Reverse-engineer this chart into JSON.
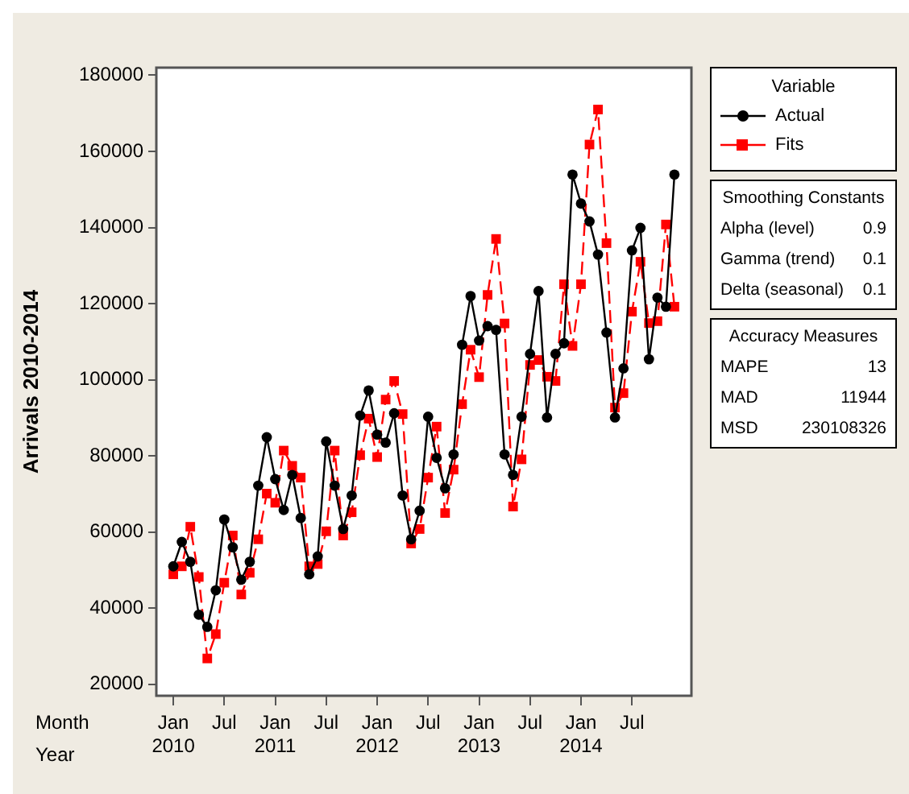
{
  "chart_data": {
    "type": "line",
    "ylabel": "Arrivals 2010-2014",
    "xlabel": "Month\nYear",
    "legend_title": "Variable",
    "legend": "right",
    "grid": false,
    "x": [
      "2010-01",
      "2010-02",
      "2010-03",
      "2010-04",
      "2010-05",
      "2010-06",
      "2010-07",
      "2010-08",
      "2010-09",
      "2010-10",
      "2010-11",
      "2010-12",
      "2011-01",
      "2011-02",
      "2011-03",
      "2011-04",
      "2011-05",
      "2011-06",
      "2011-07",
      "2011-08",
      "2011-09",
      "2011-10",
      "2011-11",
      "2011-12",
      "2012-01",
      "2012-02",
      "2012-03",
      "2012-04",
      "2012-05",
      "2012-06",
      "2012-07",
      "2012-08",
      "2012-09",
      "2012-10",
      "2012-11",
      "2012-12",
      "2013-01",
      "2013-02",
      "2013-03",
      "2013-04",
      "2013-05",
      "2013-06",
      "2013-07",
      "2013-08",
      "2013-09",
      "2013-10",
      "2013-11",
      "2013-12",
      "2014-01",
      "2014-02",
      "2014-03",
      "2014-04",
      "2014-05",
      "2014-06",
      "2014-07",
      "2014-08",
      "2014-09",
      "2014-10",
      "2014-11",
      "2014-12"
    ],
    "series": [
      {
        "name": "Actual",
        "color": "#000000",
        "marker": "circle",
        "line_style": "solid",
        "values": [
          51000,
          57400,
          52200,
          38300,
          35100,
          44700,
          63300,
          56000,
          47500,
          52200,
          72200,
          84900,
          73900,
          65800,
          75000,
          63700,
          48900,
          53600,
          83800,
          72200,
          60800,
          69600,
          90600,
          97200,
          85600,
          83500,
          91200,
          69600,
          58100,
          65600,
          90300,
          79500,
          71500,
          80400,
          109200,
          122000,
          110300,
          114100,
          113100,
          80400,
          75000,
          90300,
          106800,
          123300,
          90100,
          106800,
          109600,
          153900,
          146300,
          141600,
          132900,
          112400,
          90100,
          103000,
          134000,
          139900,
          105400,
          121600,
          119200,
          153900
        ]
      },
      {
        "name": "Fits",
        "color": "#ff0000",
        "marker": "square",
        "line_style": "dashed",
        "values": [
          48900,
          51000,
          61400,
          48200,
          26800,
          33200,
          46700,
          59100,
          43600,
          49300,
          58100,
          70100,
          67700,
          81400,
          77400,
          74300,
          51000,
          51600,
          60200,
          81400,
          59100,
          65200,
          80200,
          89800,
          79700,
          94800,
          99700,
          91000,
          57000,
          60800,
          74300,
          87700,
          65000,
          76400,
          93600,
          107900,
          100700,
          122300,
          137000,
          114800,
          66700,
          79100,
          103900,
          105200,
          100800,
          99700,
          125100,
          108900,
          125100,
          161800,
          171000,
          135900,
          92700,
          96500,
          117900,
          131000,
          114900,
          115400,
          140800,
          119200
        ]
      }
    ],
    "xlim": [
      "2009-11",
      "2015-02"
    ],
    "xticks": [
      {
        "value": "2010-01",
        "label": "Jan\n2010"
      },
      {
        "value": "2010-07",
        "label": "Jul"
      },
      {
        "value": "2011-01",
        "label": "Jan\n2011"
      },
      {
        "value": "2011-07",
        "label": "Jul"
      },
      {
        "value": "2012-01",
        "label": "Jan\n2012"
      },
      {
        "value": "2012-07",
        "label": "Jul"
      },
      {
        "value": "2013-01",
        "label": "Jan\n2013"
      },
      {
        "value": "2013-07",
        "label": "Jul"
      },
      {
        "value": "2014-01",
        "label": "Jan\n2014"
      },
      {
        "value": "2014-07",
        "label": "Jul"
      }
    ],
    "ylim": [
      17000,
      182000
    ],
    "yticks": [
      20000,
      40000,
      60000,
      80000,
      100000,
      120000,
      140000,
      160000,
      180000
    ],
    "annotations": [
      "Smoothing Constants",
      "Alpha (level)\t0.9",
      "Gamma (trend)\t0.1",
      "Delta (seasonal)\t0.1",
      "Accuracy Measures",
      "MAPE\t13",
      "MAD\t11944",
      "MSD\t230108326"
    ]
  }
}
